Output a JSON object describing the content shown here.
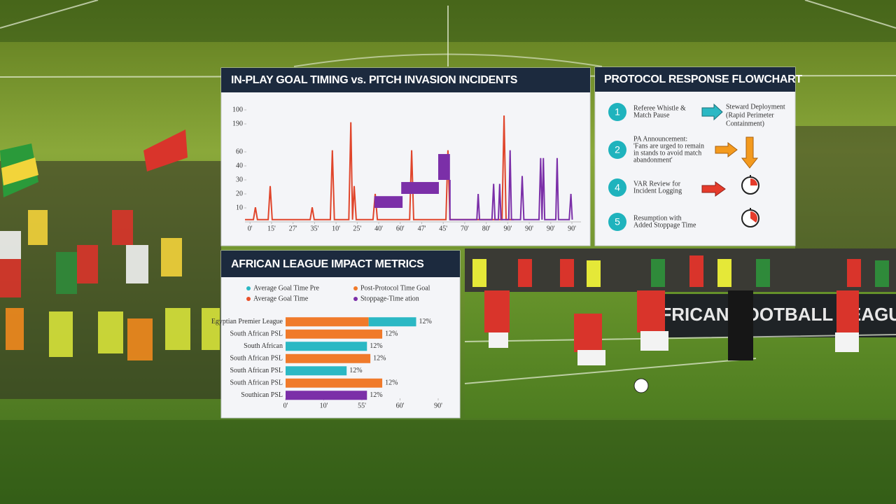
{
  "chart_data": [
    {
      "type": "line",
      "title": "IN-PLAY GOAL TIMING vs. PITCH INVASION INCIDENTS",
      "xlim": [
        0,
        100
      ],
      "ylim": [
        0,
        100
      ],
      "grid": false,
      "xticks": [
        {
          "value": 1.5,
          "label": "0'"
        },
        {
          "value": 7.9,
          "label": "15'"
        },
        {
          "value": 14.3,
          "label": "27'"
        },
        {
          "value": 20.7,
          "label": "35'"
        },
        {
          "value": 27.1,
          "label": "10'"
        },
        {
          "value": 33.4,
          "label": "25'"
        },
        {
          "value": 39.8,
          "label": "40'"
        },
        {
          "value": 46.2,
          "label": "60'"
        },
        {
          "value": 52.6,
          "label": "47'"
        },
        {
          "value": 59,
          "label": "45'"
        },
        {
          "value": 65.4,
          "label": "70'"
        },
        {
          "value": 71.8,
          "label": "80'"
        },
        {
          "value": 78.2,
          "label": "90'"
        },
        {
          "value": 84.6,
          "label": "90'"
        },
        {
          "value": 91,
          "label": "90'"
        },
        {
          "value": 97.3,
          "label": "90'"
        }
      ],
      "yticks": [
        100,
        {
          "value": 87.5,
          "label": "190"
        },
        {
          "value": 62.5,
          "label": "60"
        },
        {
          "value": 50,
          "label": "40"
        },
        {
          "value": 37.5,
          "label": "30"
        },
        {
          "value": 25,
          "label": "20"
        },
        {
          "value": 12.5,
          "label": "10"
        }
      ],
      "series": [
        {
          "color": "#e0452b",
          "x": [
            0,
            2.5,
            3.1,
            3.7,
            6.9,
            7.5,
            8.1,
            19.4,
            20,
            20.6,
            25.4,
            26,
            26.6,
            30.9,
            31.5,
            32,
            32.5,
            33.1,
            38.1,
            38.75,
            39.4,
            49,
            49.6,
            50.2,
            59.8,
            60.4,
            61,
            76.5,
            77.1,
            77.7,
            80
          ],
          "values": [
            2,
            2,
            13,
            2,
            2,
            32,
            2,
            2,
            13,
            2,
            2,
            64,
            2,
            2,
            89,
            2,
            32,
            2,
            2,
            25,
            2,
            2,
            64,
            2,
            2,
            64,
            2,
            2,
            95,
            2,
            2
          ]
        },
        {
          "color": "#7b2fa8",
          "x": [
            61,
            61,
            69,
            69.4,
            69.8,
            73.5,
            74,
            74.4,
            75.4,
            75.8,
            76.2,
            78.5,
            78.9,
            79.3,
            82,
            82.5,
            83,
            87.5,
            88,
            88.4,
            88.8,
            89.2,
            92.5,
            92.9,
            93.3,
            96.5,
            97,
            97.4
          ],
          "values": [
            37.5,
            2,
            2,
            25,
            2,
            2,
            34,
            2,
            2,
            34,
            2,
            2,
            64,
            2,
            2,
            41,
            2,
            2,
            57,
            2,
            57,
            2,
            2,
            57,
            2,
            2,
            25,
            2
          ],
          "blocks": [
            {
              "x": [
                38.5,
                46.9
              ],
              "y": [
                12.5,
                23
              ]
            },
            {
              "x": [
                46.5,
                57.7
              ],
              "y": [
                25,
                35.6
              ]
            },
            {
              "x": [
                57.5,
                61
              ],
              "y": [
                37.5,
                60.6
              ]
            }
          ]
        }
      ]
    },
    {
      "type": "barh",
      "title": "AFRICAN LEAGUE IMPACT METRICS",
      "categories": [
        "Egyptian Premier League",
        "South African PSL",
        "South African",
        "South African PSL",
        "South African PSL",
        "South African PSL",
        "Southican PSL"
      ],
      "xlim": [
        0,
        90
      ],
      "xticks": [
        {
          "value": 0,
          "label": "0'"
        },
        {
          "value": 22.5,
          "label": "10'"
        },
        {
          "value": 45,
          "label": "55'"
        },
        {
          "value": 67.5,
          "label": "60'"
        },
        {
          "value": 90,
          "label": "90'"
        }
      ],
      "series": [
        {
          "name": "Average Goal Time Pre",
          "color": "#2bb8c4",
          "values": [
            28,
            null,
            48,
            null,
            36,
            null,
            null
          ]
        },
        {
          "name": "Post-Protocol Time Goal",
          "color": "#f07a2a",
          "values": [
            49,
            57,
            null,
            50,
            null,
            57,
            null
          ]
        },
        {
          "name": "Average Goal Time",
          "color": "#e8502a",
          "values": [
            null,
            null,
            null,
            null,
            null,
            null,
            null
          ]
        },
        {
          "name": "Stoppage-Time ation",
          "color": "#7b2fa8",
          "values": [
            null,
            null,
            null,
            null,
            null,
            null,
            48
          ]
        }
      ],
      "annotations": [
        "12%",
        "12%",
        "12%",
        "12%",
        "12%",
        "12%",
        "12%"
      ]
    }
  ],
  "flowchart": {
    "title": "PROTOCOL RESPONSE FLOWCHART",
    "steps": [
      {
        "number": "1",
        "text": [
          "Referee Whistle &",
          "Match Pause"
        ]
      },
      {
        "number": "2",
        "text": [
          "PA Announcement:",
          "'Fans are urged to remain",
          "in stands to avoid match",
          "abandonment'"
        ]
      },
      {
        "number": "4",
        "text": [
          "VAR Review for",
          "Incident Logging"
        ]
      },
      {
        "number": "5",
        "text": [
          "Resumption with",
          "Added Stoppage Time"
        ]
      }
    ],
    "outcome": [
      "Steward Deployment",
      "(Rapid Perimeter",
      "Containment)"
    ]
  },
  "banner": "AFRICAN FOOTBALL LEAGUE"
}
